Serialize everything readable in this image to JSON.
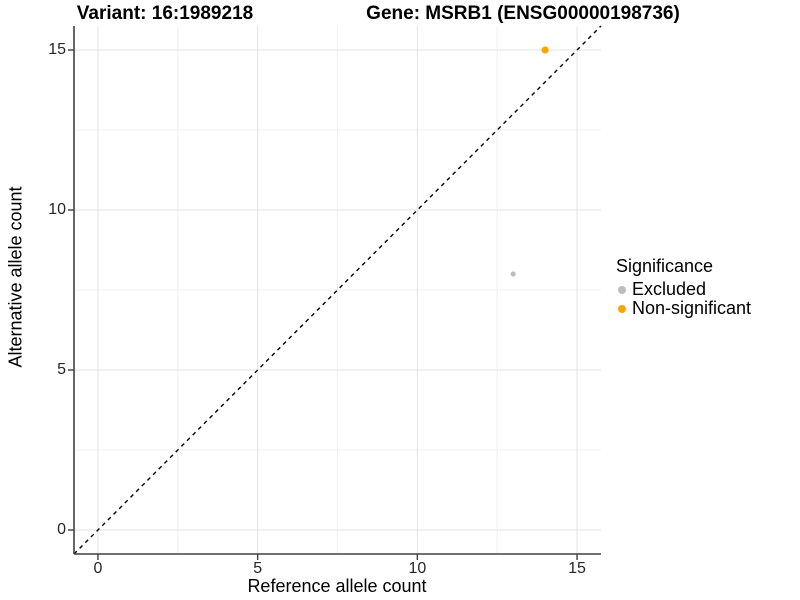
{
  "figure": {
    "title_left": "Variant: 16:1989218",
    "title_right": "Gene: MSRB1 (ENSG00000198736)"
  },
  "chart_data": {
    "type": "scatter",
    "xlabel": "Reference allele count",
    "ylabel": "Alternative allele count",
    "xlim": [
      -0.75,
      15.75
    ],
    "ylim": [
      -0.75,
      15.75
    ],
    "x_ticks": [
      0,
      5,
      10,
      15
    ],
    "y_ticks": [
      0,
      5,
      10,
      15
    ],
    "x_minor_ticks": [
      2.5,
      7.5,
      12.5
    ],
    "y_minor_ticks": [
      2.5,
      7.5,
      12.5
    ],
    "grid": true,
    "identity_line": {
      "slope": 1,
      "intercept": 0,
      "style": "dashed",
      "color": "#000000"
    },
    "series": [
      {
        "name": "Excluded",
        "color": "#BDBDBD",
        "point_radius": 2.6,
        "points": [
          {
            "x": 13,
            "y": 8
          }
        ]
      },
      {
        "name": "Non-significant",
        "color": "#FFA500",
        "point_radius": 3.6,
        "points": [
          {
            "x": 14,
            "y": 15
          }
        ]
      }
    ],
    "legend": {
      "title": "Significance",
      "position": "right"
    }
  },
  "colors": {
    "background": "#FFFFFF",
    "grid_major": "#E3E3E3",
    "grid_minor": "#F0F0F0",
    "axis_line": "#404040",
    "tick_label": "#262626",
    "title": "#000000"
  }
}
